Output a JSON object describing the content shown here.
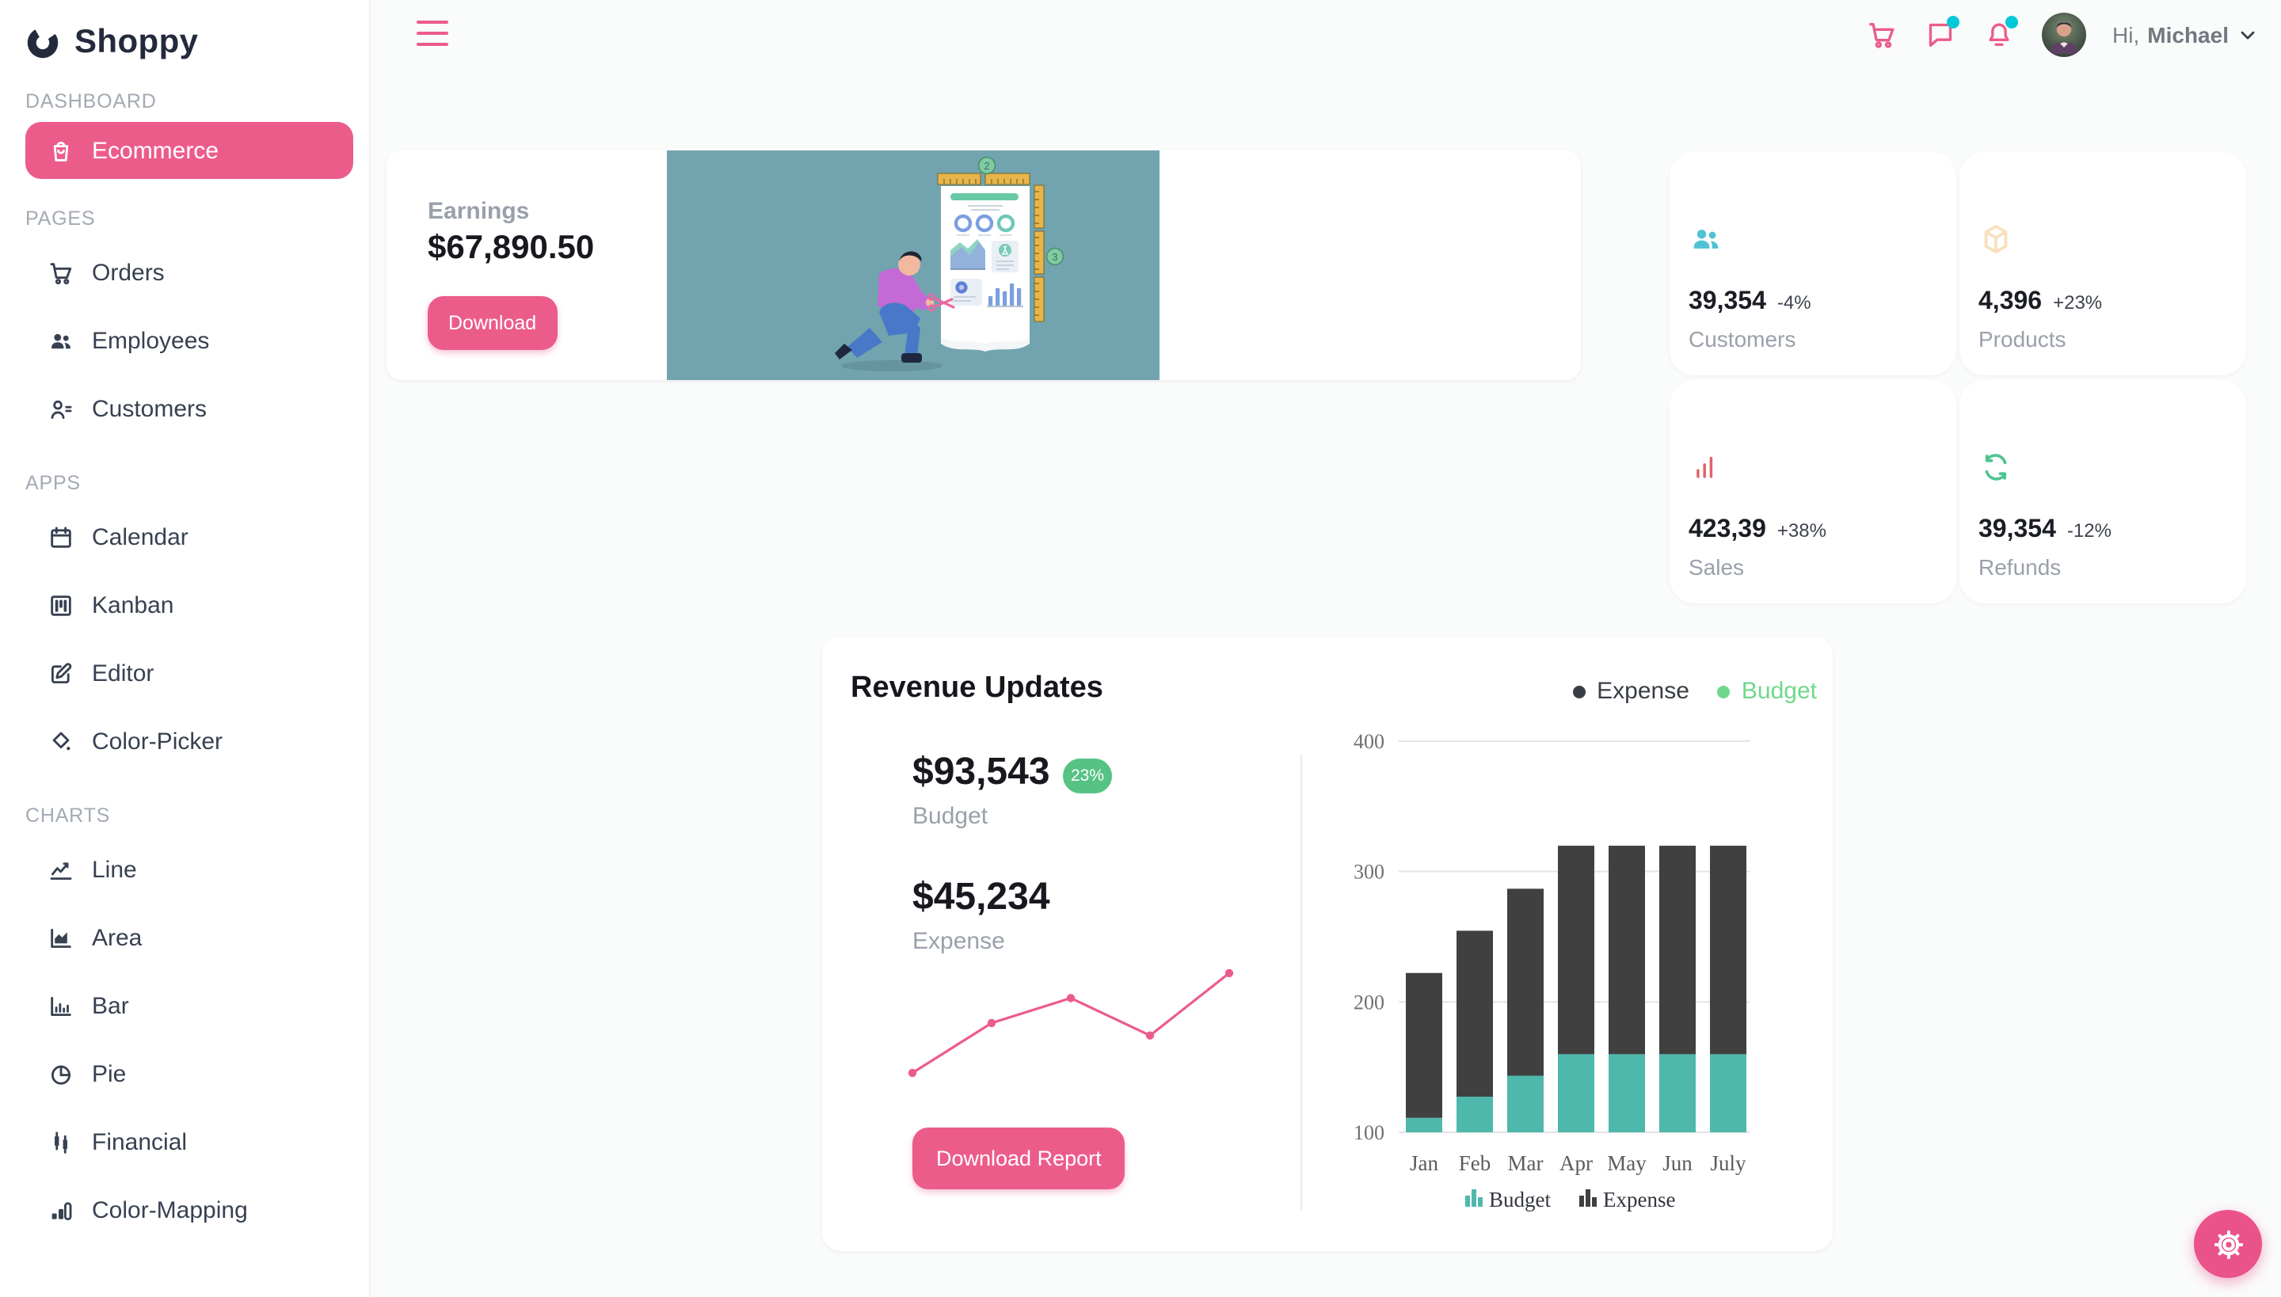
{
  "app": {
    "accent_color": "#ec5c8a",
    "badge_color": "#03c9d7"
  },
  "sidebar": {
    "logo_text": "Shoppy",
    "sections": [
      {
        "label": "DASHBOARD",
        "items": [
          {
            "label": "Ecommerce",
            "icon": "shopping-bag-icon",
            "active": true
          }
        ]
      },
      {
        "label": "PAGES",
        "items": [
          {
            "label": "Orders",
            "icon": "cart-icon"
          },
          {
            "label": "Employees",
            "icon": "employees-icon"
          },
          {
            "label": "Customers",
            "icon": "customers-icon"
          }
        ]
      },
      {
        "label": "APPS",
        "items": [
          {
            "label": "Calendar",
            "icon": "calendar-icon"
          },
          {
            "label": "Kanban",
            "icon": "kanban-icon"
          },
          {
            "label": "Editor",
            "icon": "editor-icon"
          },
          {
            "label": "Color-Picker",
            "icon": "color-picker-icon"
          }
        ]
      },
      {
        "label": "CHARTS",
        "items": [
          {
            "label": "Line",
            "icon": "line-chart-icon"
          },
          {
            "label": "Area",
            "icon": "area-chart-icon"
          },
          {
            "label": "Bar",
            "icon": "bar-chart-icon"
          },
          {
            "label": "Pie",
            "icon": "pie-chart-icon"
          },
          {
            "label": "Financial",
            "icon": "financial-chart-icon"
          },
          {
            "label": "Color-Mapping",
            "icon": "color-mapping-icon"
          }
        ]
      }
    ]
  },
  "topbar": {
    "greeting_prefix": "Hi,",
    "user_name": "Michael",
    "icons": [
      {
        "name": "cart-icon",
        "badge": false
      },
      {
        "name": "chat-icon",
        "badge": true
      },
      {
        "name": "bell-icon",
        "badge": true
      }
    ]
  },
  "earnings_card": {
    "label": "Earnings",
    "amount": "$67,890.50",
    "download_label": "Download"
  },
  "stat_cards": [
    {
      "value": "39,354",
      "delta": "-4%",
      "label": "Customers",
      "icon": "customers-stat-icon",
      "icon_color": "#4fc3d4"
    },
    {
      "value": "4,396",
      "delta": "+23%",
      "label": "Products",
      "icon": "box-icon",
      "icon_color": "#f9dfbc"
    },
    {
      "value": "423,39",
      "delta": "+38%",
      "label": "Sales",
      "icon": "sales-bars-icon",
      "icon_color": "#e2626a"
    },
    {
      "value": "39,354",
      "delta": "-12%",
      "label": "Refunds",
      "icon": "refresh-icon",
      "icon_color": "#4dc591"
    }
  ],
  "revenue": {
    "title": "Revenue Updates",
    "header_legend": [
      {
        "label": "Expense",
        "color": "#393d45"
      },
      {
        "label": "Budget",
        "color": "#6fd88a"
      }
    ],
    "budget": {
      "value": "$93,543",
      "badge": "23%",
      "label": "Budget"
    },
    "expense": {
      "value": "$45,234",
      "label": "Expense"
    },
    "download_label": "Download Report"
  },
  "chart_data": [
    {
      "type": "bar",
      "stacked": true,
      "title": "Revenue Updates stacked columns",
      "categories": [
        "Jan",
        "Feb",
        "Mar",
        "Apr",
        "May",
        "Jun",
        "July"
      ],
      "series": [
        {
          "name": "Budget",
          "color": "#4fb8ac",
          "values": [
            111.1,
            127.3,
            143.4,
            159.9,
            159.9,
            159.9,
            159.9
          ]
        },
        {
          "name": "Expense",
          "color": "#404041",
          "values": [
            111.1,
            127.3,
            143.4,
            159.9,
            159.9,
            159.9,
            159.9
          ]
        }
      ],
      "ylim": [
        100,
        400
      ],
      "yticks": [
        100,
        200,
        300,
        400
      ],
      "grid": "horizontal",
      "legend_position": "bottom"
    },
    {
      "type": "line",
      "title": "budget sparkline",
      "x": [
        1,
        2,
        3,
        4,
        5
      ],
      "values": [
        2,
        6,
        8,
        5,
        10
      ],
      "color": "#ec5c8a",
      "markers": true,
      "grid": "off"
    }
  ]
}
